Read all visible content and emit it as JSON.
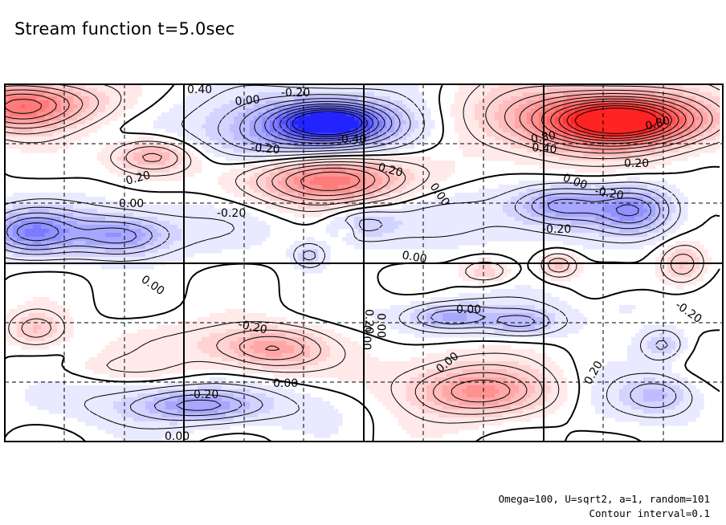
{
  "title": "Stream function t=5.0sec",
  "footnote_params": "Omega=100, U=sqrt2, a=1, random=101",
  "footnote_interval": "Contour interval=0.1",
  "colors": {
    "positive": "#ff2a2a",
    "negative": "#2a2aff",
    "grid": "#000000"
  },
  "chart_data": {
    "type": "heatmap",
    "title": "Stream function t=5.0sec",
    "contour_interval": 0.1,
    "grid": true,
    "extrema": [
      {
        "value": 0.9,
        "sign": "positive"
      },
      {
        "value": -0.8,
        "sign": "negative"
      },
      {
        "value": 0.6,
        "sign": "positive"
      },
      {
        "value": -0.5,
        "sign": "negative"
      }
    ],
    "contour_labels": [
      "0.40",
      "0.00",
      "-0.20",
      "-0.20",
      "-0.40",
      "0.80",
      "0.80",
      "0.40",
      "0.20",
      "0.20",
      "0.20",
      "0.00",
      "0.00",
      "-0.20",
      "0.00",
      "-0.20",
      "-0.20",
      "0.00",
      "0.00",
      "0.00",
      "-0.20",
      "0.00",
      "-0.20",
      "0.00",
      "0.20",
      "0.00",
      "-0.20",
      "0.00",
      "0.00",
      "0.20"
    ]
  }
}
